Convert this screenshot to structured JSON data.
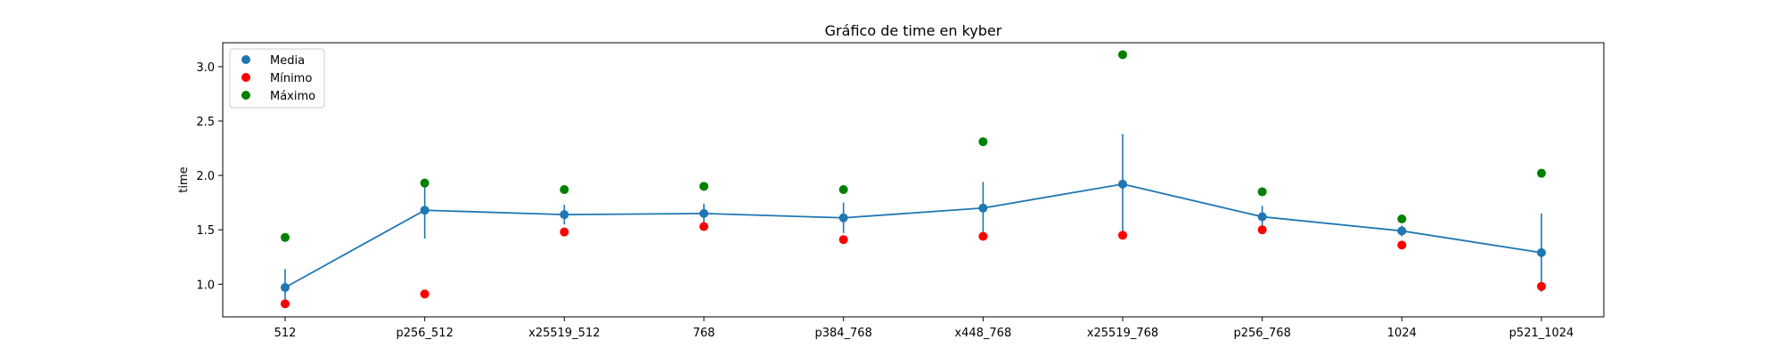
{
  "chart_data": {
    "type": "scatter",
    "title": "Gráfico de time en kyber",
    "xlabel": "",
    "ylabel": "time",
    "categories": [
      "512",
      "p256_512",
      "x25519_512",
      "768",
      "p384_768",
      "x448_768",
      "x25519_768",
      "p256_768",
      "1024",
      "p521_1024"
    ],
    "ylim": [
      0.7,
      3.22
    ],
    "yticks": [
      1.0,
      1.5,
      2.0,
      2.5,
      3.0
    ],
    "ytick_labels": [
      "1.0",
      "1.5",
      "2.0",
      "2.5",
      "3.0"
    ],
    "grid": false,
    "legend_position": "top-left",
    "series": [
      {
        "name": "Media",
        "color": "#1f77b4",
        "values": [
          0.97,
          1.68,
          1.64,
          1.65,
          1.61,
          1.7,
          1.92,
          1.62,
          1.49,
          1.29
        ],
        "error": [
          0.17,
          0.26,
          0.09,
          0.09,
          0.14,
          0.24,
          0.46,
          0.1,
          0.05,
          0.36
        ],
        "line": true
      },
      {
        "name": "Mínimo",
        "color": "#ff0000",
        "values": [
          0.82,
          0.91,
          1.48,
          1.53,
          1.41,
          1.44,
          1.45,
          1.5,
          1.36,
          0.98
        ]
      },
      {
        "name": "Máximo",
        "color": "#008000",
        "values": [
          1.43,
          1.93,
          1.87,
          1.9,
          1.87,
          2.31,
          3.11,
          1.85,
          1.6,
          2.02
        ]
      }
    ]
  }
}
